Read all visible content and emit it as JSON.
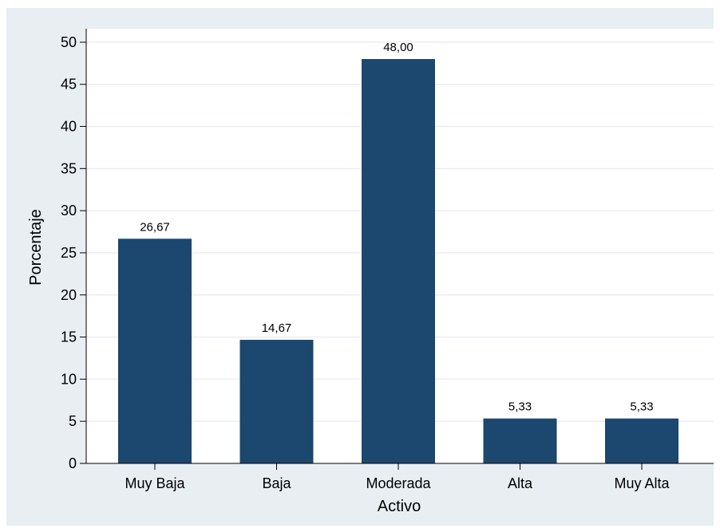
{
  "chart_data": {
    "type": "bar",
    "title": "",
    "xlabel": "Activo",
    "ylabel": "Porcentaje",
    "categories": [
      "Muy Baja",
      "Baja",
      "Moderada",
      "Alta",
      "Muy Alta"
    ],
    "values": [
      26.67,
      14.67,
      48.0,
      5.33,
      5.33
    ],
    "value_labels": [
      "26,67",
      "14,67",
      "48,00",
      "5,33",
      "5,33"
    ],
    "ylim": [
      0,
      50
    ],
    "yticks": [
      0,
      5,
      10,
      15,
      20,
      25,
      30,
      35,
      40,
      45,
      50
    ],
    "grid": true,
    "legend": "none",
    "colors": {
      "bar": "#1c476e",
      "background": "#e9eef3",
      "plot_background": "#ffffff",
      "grid": "#e9eef3"
    }
  }
}
